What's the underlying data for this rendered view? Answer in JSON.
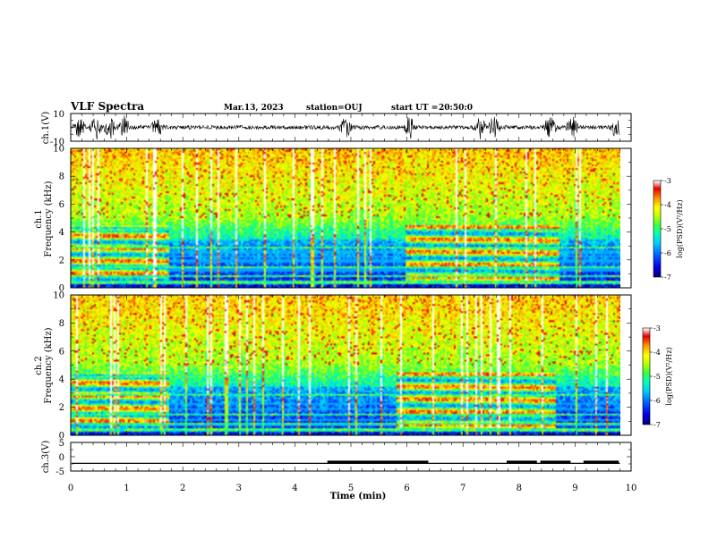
{
  "header": {
    "title": "VLF Spectra",
    "date": "Mar.13, 2023",
    "station": "station=OUJ",
    "start_ut": "start UT =",
    "start_time": "20:50:0"
  },
  "panels": {
    "ch1_wave_label": "ch.1(V)",
    "ch1_spec_label_top": "ch.1",
    "ch1_spec_label": "Frequency (kHz)",
    "ch2_spec_label_top": "ch.2",
    "ch2_spec_label": "Frequency (kHz)",
    "ch3_label": "ch.3(V)",
    "time_label": "Time (min)"
  },
  "colorbar": {
    "label": "log(PSD)(V²/Hz)",
    "ticks": [
      "-3",
      "-4",
      "-5",
      "-6",
      "-7"
    ]
  },
  "colors": {
    "spectrum_low": "#000090",
    "spectrum_mid": "#00c8ff",
    "spectrum_green": "#60ff40",
    "spectrum_high": "#ffff00",
    "spectrum_max": "#e00000",
    "waveform": "#000000"
  },
  "chart_data": [
    {
      "type": "line",
      "panel": "ch.1 waveform",
      "ylabel": "ch.1(V)",
      "ylim": [
        -10,
        10
      ],
      "y_ticks": [
        "10",
        "-10"
      ],
      "xlim": [
        0,
        10
      ],
      "x_ticks": [
        0,
        1,
        2,
        3,
        4,
        5,
        6,
        7,
        8,
        9,
        10
      ],
      "time_end_min": 9.8,
      "bursts_min": [
        0.15,
        0.45,
        0.7,
        0.95,
        1.55,
        4.9,
        6.05,
        7.3,
        7.55,
        8.55,
        8.95,
        9.75
      ]
    },
    {
      "type": "heatmap",
      "panel": "ch.1 spectrogram",
      "ylabel": "Frequency (kHz)",
      "ylim": [
        0,
        10
      ],
      "y_ticks": [
        "0",
        "2",
        "4",
        "6",
        "8",
        "10"
      ],
      "xlim": [
        0,
        10
      ],
      "time_end_min": 9.8,
      "colorbar_range": [
        -7,
        -3
      ],
      "noise_bands_khz": [
        [
          0.4,
          4.6
        ],
        [
          1.1,
          4.3
        ]
      ],
      "noise_intervals_min": [
        [
          0,
          1.75
        ],
        [
          5.95,
          8.7
        ]
      ],
      "quiet_low_band_khz": 2.2
    },
    {
      "type": "heatmap",
      "panel": "ch.2 spectrogram",
      "ylabel": "Frequency (kHz)",
      "ylim": [
        0,
        10
      ],
      "y_ticks": [
        "0",
        "2",
        "4",
        "6",
        "8",
        "10"
      ],
      "xlim": [
        0,
        10
      ],
      "time_end_min": 9.8,
      "colorbar_range": [
        -7,
        -3
      ],
      "noise_bands_khz": [
        [
          0.4,
          4.2
        ],
        [
          1.3,
          4.3
        ]
      ],
      "noise_intervals_min": [
        [
          0,
          1.75
        ],
        [
          5.8,
          8.65
        ]
      ]
    },
    {
      "type": "line",
      "panel": "ch.3",
      "ylabel": "ch.3(V)",
      "ylim": [
        -5,
        5
      ],
      "y_ticks": [
        "5",
        "0",
        "-5"
      ],
      "xlim": [
        0,
        10
      ],
      "xlabel": "Time (min)",
      "x_ticks": [
        0,
        1,
        2,
        3,
        4,
        5,
        6,
        7,
        8,
        9,
        10
      ],
      "baseline_v": -2.3,
      "pulses_min": [
        [
          4.58,
          6.38
        ],
        [
          7.78,
          8.32
        ],
        [
          8.38,
          8.92
        ],
        [
          9.15,
          9.78
        ]
      ]
    }
  ]
}
